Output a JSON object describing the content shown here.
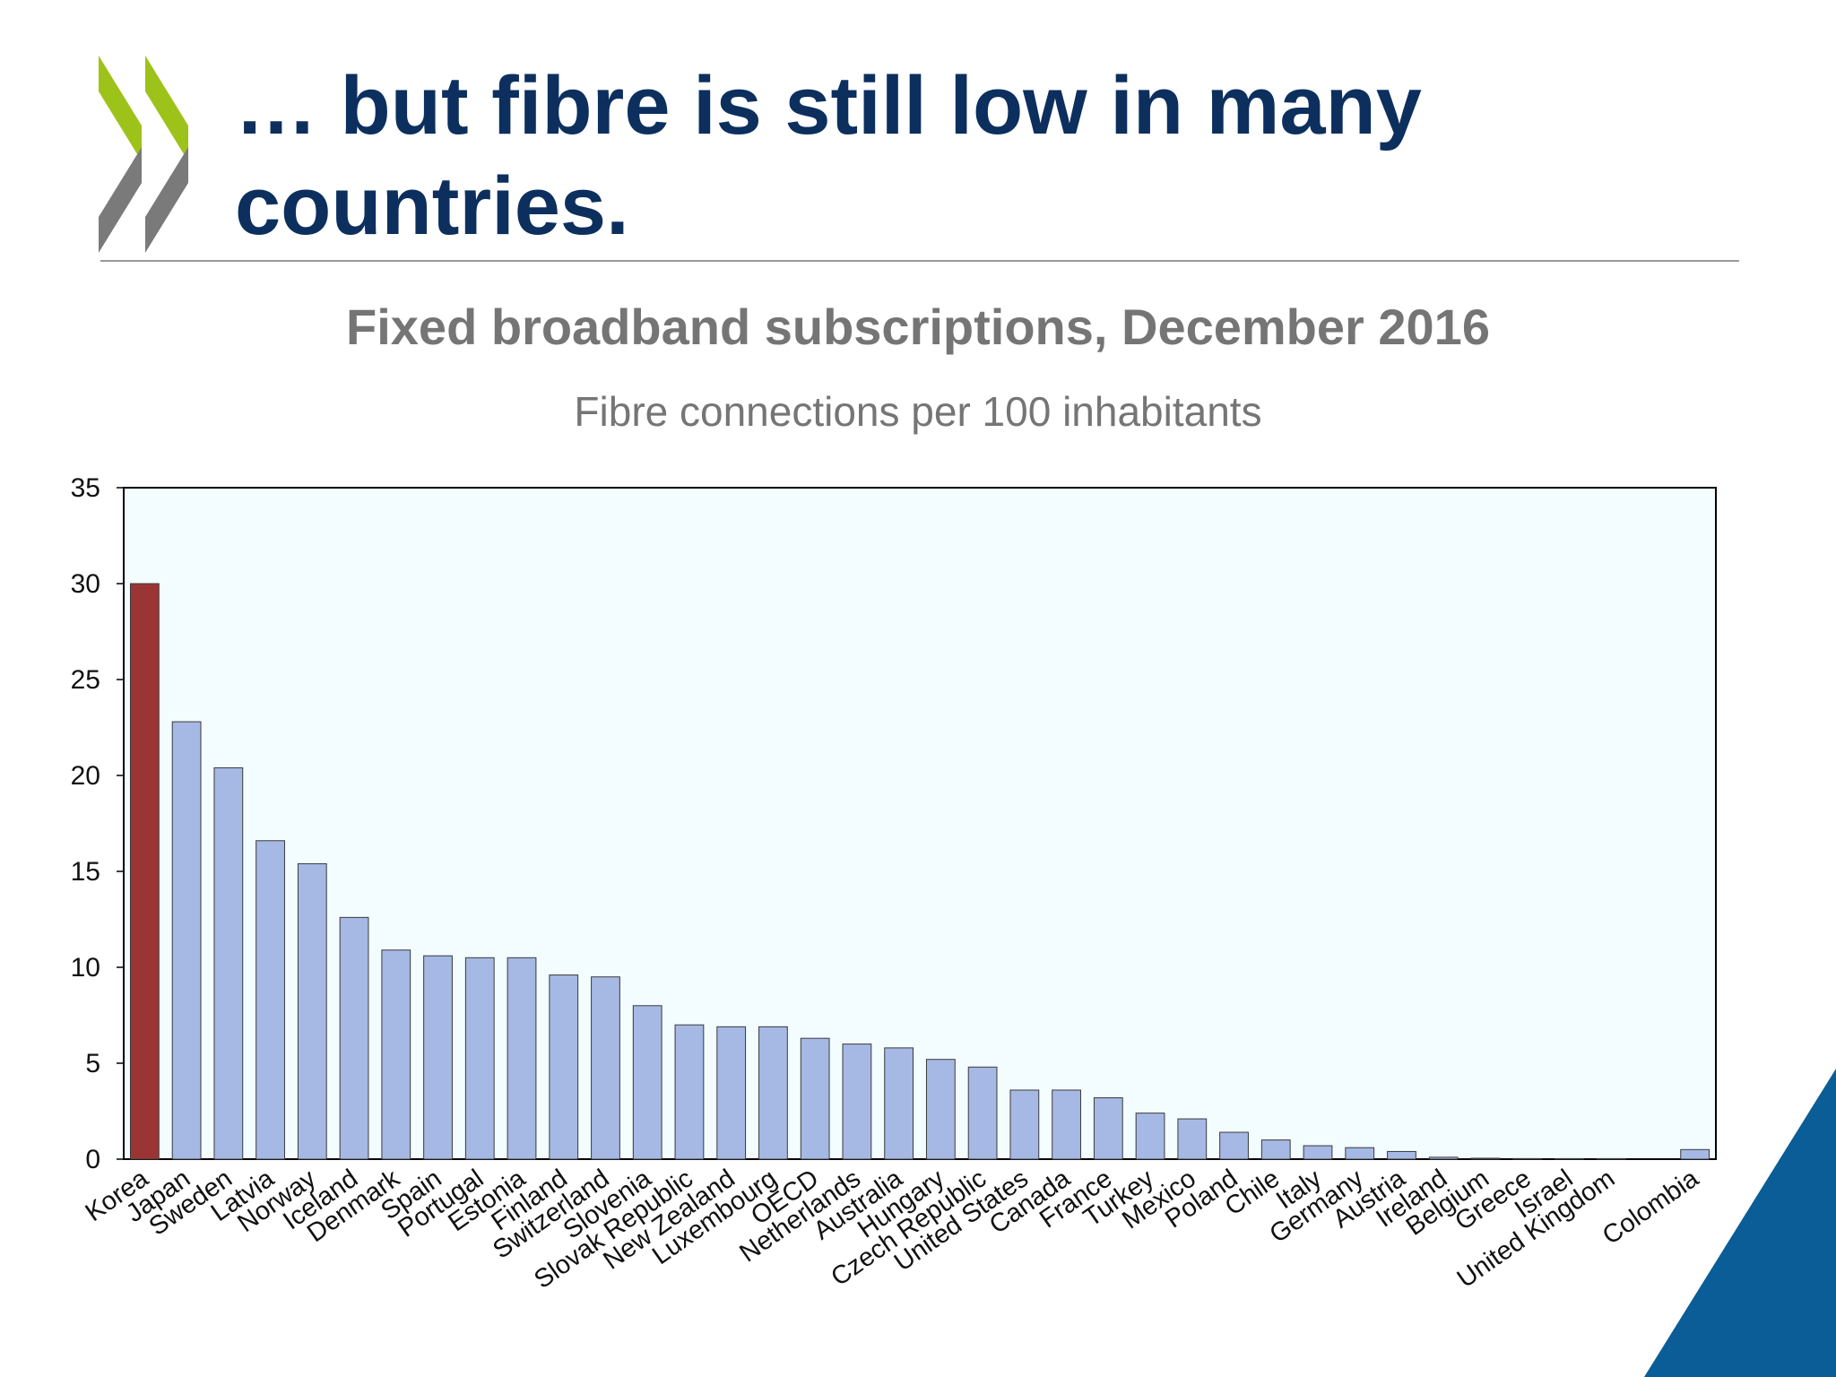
{
  "slide": {
    "title_line1": "… but fibre is still low in many",
    "title_line2": "countries."
  },
  "colors": {
    "title": "#0c2f5e",
    "logo_green": "#9dc31b",
    "logo_grey": "#7a7a7a",
    "highlight_bar": "#9b3535",
    "bar": "#a6b8e4",
    "plot_background": "#f3fdff",
    "corner_accent": "#0a5d96"
  },
  "chart_data": {
    "type": "bar",
    "title": "Fixed broadband subscriptions, December 2016",
    "subtitle": "Fibre connections per 100 inhabitants",
    "ylim": [
      0,
      35
    ],
    "yticks": [
      0,
      5,
      10,
      15,
      20,
      25,
      30,
      35
    ],
    "grid": false,
    "highlight": "Korea",
    "categories": [
      "Korea",
      "Japan",
      "Sweden",
      "Latvia",
      "Norway",
      "Iceland",
      "Denmark",
      "Spain",
      "Portugal",
      "Estonia",
      "Finland",
      "Switzerland",
      "Slovenia",
      "Slovak Republic",
      "New Zealand",
      "Luxembourg",
      "OECD",
      "Netherlands",
      "Australia",
      "Hungary",
      "Czech Republic",
      "United States",
      "Canada",
      "France",
      "Turkey",
      "Mexico",
      "Poland",
      "Chile",
      "Italy",
      "Germany",
      "Austria",
      "Ireland",
      "Belgium",
      "Greece",
      "Israel",
      "United Kingdom",
      "",
      "Colombia"
    ],
    "values": [
      30.0,
      22.8,
      20.4,
      16.6,
      15.4,
      12.6,
      10.9,
      10.6,
      10.5,
      10.5,
      9.6,
      9.5,
      8.0,
      7.0,
      6.9,
      6.9,
      6.3,
      6.0,
      5.8,
      5.2,
      4.8,
      3.6,
      3.6,
      3.2,
      2.4,
      2.1,
      1.4,
      1.0,
      0.7,
      0.6,
      0.4,
      0.1,
      0.05,
      0.03,
      0.02,
      0.01,
      null,
      0.5
    ]
  }
}
